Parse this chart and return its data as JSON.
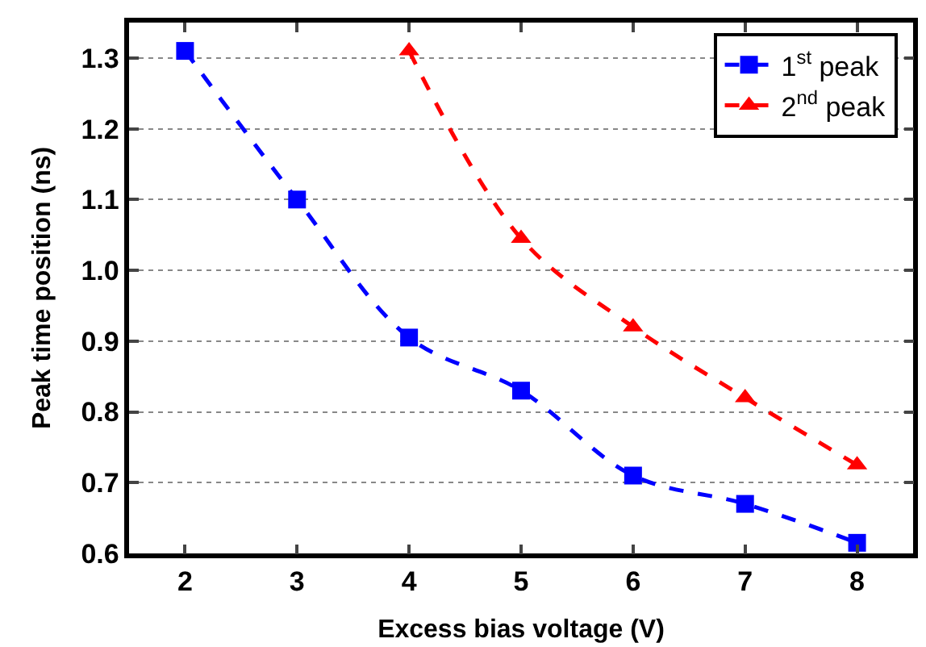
{
  "chart_data": {
    "type": "line",
    "xlabel": "Excess bias voltage (V)",
    "ylabel": "Peak time position (ns)",
    "xlim": [
      1.5,
      8.5
    ],
    "xticks": [
      2,
      3,
      4,
      5,
      6,
      7,
      8
    ],
    "ylim": [
      0.6,
      1.35
    ],
    "yticks": [
      0.6,
      0.7,
      0.8,
      0.9,
      {
        "value": 1.0,
        "label": "1.0"
      },
      1.1,
      1.2,
      1.3
    ],
    "grid": "y",
    "legend": "top right",
    "line_style": "dashed",
    "series": [
      {
        "name": "1$^{st}$ peak",
        "color": "#0000ff",
        "marker": "square",
        "x": [
          2,
          3,
          4,
          5,
          6,
          7,
          8
        ],
        "values": [
          1.31,
          1.1,
          0.905,
          0.83,
          0.71,
          0.67,
          0.615
        ]
      },
      {
        "name": "2$^{nd}$ peak",
        "color": "#ff0000",
        "marker": "triangle",
        "x": [
          4,
          5,
          6,
          7,
          8
        ],
        "values": [
          1.31,
          1.045,
          0.92,
          0.82,
          0.725
        ]
      }
    ]
  }
}
